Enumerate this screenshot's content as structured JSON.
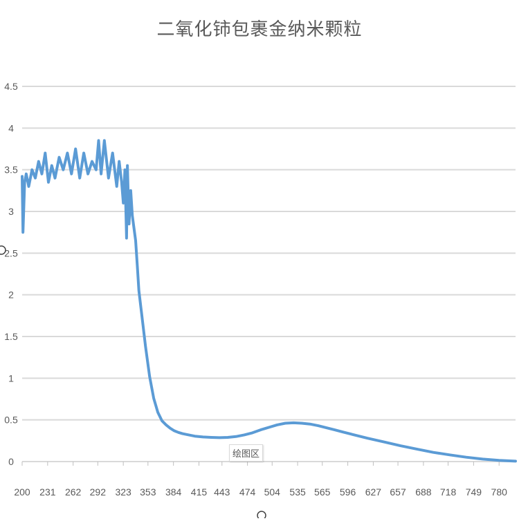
{
  "chart_data": {
    "type": "line",
    "title": "二氧化铈包裹金纳米颗粒",
    "xlabel": "",
    "ylabel": "",
    "ylim": [
      0,
      4.5
    ],
    "xlim": [
      200,
      800
    ],
    "y_ticks": [
      "0",
      "0.5",
      "1",
      "1.5",
      "2",
      "2.5",
      "3",
      "3.5",
      "4",
      "4.5"
    ],
    "x_ticks": [
      200,
      231,
      262,
      292,
      323,
      353,
      384,
      415,
      443,
      474,
      504,
      535,
      565,
      596,
      627,
      657,
      688,
      718,
      749,
      780
    ],
    "grid": "horizontal",
    "legend": "none",
    "series": [
      {
        "color": "#5b9bd5",
        "x": [
          200,
          201,
          203,
          205,
          208,
          212,
          216,
          220,
          224,
          228,
          232,
          236,
          240,
          245,
          250,
          255,
          260,
          265,
          270,
          275,
          280,
          285,
          290,
          293,
          296,
          300,
          305,
          310,
          315,
          318,
          321,
          323,
          325,
          327,
          328,
          330,
          332,
          334,
          336,
          338,
          340,
          342,
          345,
          350,
          355,
          360,
          365,
          370,
          375,
          380,
          385,
          390,
          395,
          400,
          410,
          420,
          430,
          440,
          450,
          460,
          470,
          480,
          490,
          500,
          510,
          520,
          530,
          540,
          550,
          560,
          570,
          580,
          590,
          600,
          620,
          640,
          660,
          680,
          700,
          720,
          740,
          760,
          780,
          800
        ],
        "y": [
          3.42,
          2.75,
          3.35,
          3.45,
          3.3,
          3.5,
          3.4,
          3.6,
          3.45,
          3.7,
          3.35,
          3.55,
          3.4,
          3.65,
          3.5,
          3.7,
          3.45,
          3.75,
          3.4,
          3.7,
          3.45,
          3.6,
          3.5,
          3.85,
          3.45,
          3.85,
          3.4,
          3.7,
          3.3,
          3.6,
          3.35,
          3.1,
          3.5,
          2.68,
          3.55,
          2.85,
          3.25,
          2.95,
          2.8,
          2.65,
          2.35,
          2.05,
          1.8,
          1.38,
          1.02,
          0.76,
          0.59,
          0.49,
          0.44,
          0.4,
          0.37,
          0.35,
          0.335,
          0.325,
          0.305,
          0.295,
          0.29,
          0.287,
          0.29,
          0.3,
          0.32,
          0.345,
          0.38,
          0.41,
          0.44,
          0.46,
          0.465,
          0.46,
          0.45,
          0.43,
          0.405,
          0.38,
          0.355,
          0.33,
          0.28,
          0.235,
          0.19,
          0.15,
          0.11,
          0.08,
          0.052,
          0.03,
          0.015,
          0.005
        ]
      }
    ],
    "annotation": "绘图区"
  }
}
